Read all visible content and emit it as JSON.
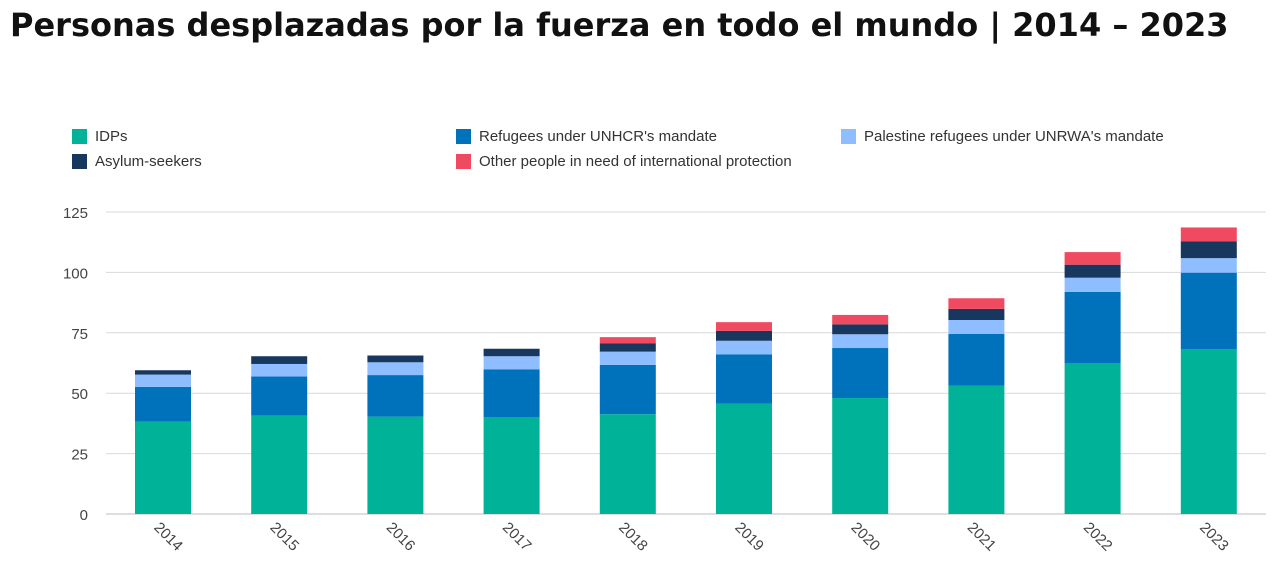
{
  "title": "Personas desplazadas por la fuerza en todo el mundo | 2014 – 2023",
  "chart_data": {
    "type": "bar",
    "stacked": true,
    "categories": [
      "2014",
      "2015",
      "2016",
      "2017",
      "2018",
      "2019",
      "2020",
      "2021",
      "2022",
      "2023"
    ],
    "ylim": [
      0,
      125
    ],
    "yticks": [
      0,
      25,
      50,
      75,
      100,
      125
    ],
    "grid": true,
    "legend_position": "top",
    "series": [
      {
        "name": "IDPs",
        "color": "#00b398",
        "values": [
          38.2,
          40.8,
          40.3,
          40.0,
          41.3,
          45.7,
          48.0,
          53.2,
          62.5,
          68.3
        ]
      },
      {
        "name": "Refugees under UNHCR's mandate",
        "color": "#0072bc",
        "values": [
          14.4,
          16.1,
          17.2,
          19.9,
          20.4,
          20.4,
          20.7,
          21.3,
          29.4,
          31.6
        ]
      },
      {
        "name": "Palestine refugees under UNRWA's mandate",
        "color": "#8ebeff",
        "values": [
          5.1,
          5.2,
          5.3,
          5.4,
          5.5,
          5.6,
          5.7,
          5.8,
          5.9,
          6.0
        ]
      },
      {
        "name": "Asylum-seekers",
        "color": "#18375f",
        "values": [
          1.8,
          3.2,
          2.8,
          3.1,
          3.5,
          4.1,
          4.1,
          4.6,
          5.4,
          6.9
        ]
      },
      {
        "name": "Other people in need of international protection",
        "color": "#ef4a60",
        "values": [
          0,
          0,
          0,
          0,
          2.5,
          3.6,
          3.9,
          4.4,
          5.2,
          5.8
        ]
      }
    ]
  }
}
